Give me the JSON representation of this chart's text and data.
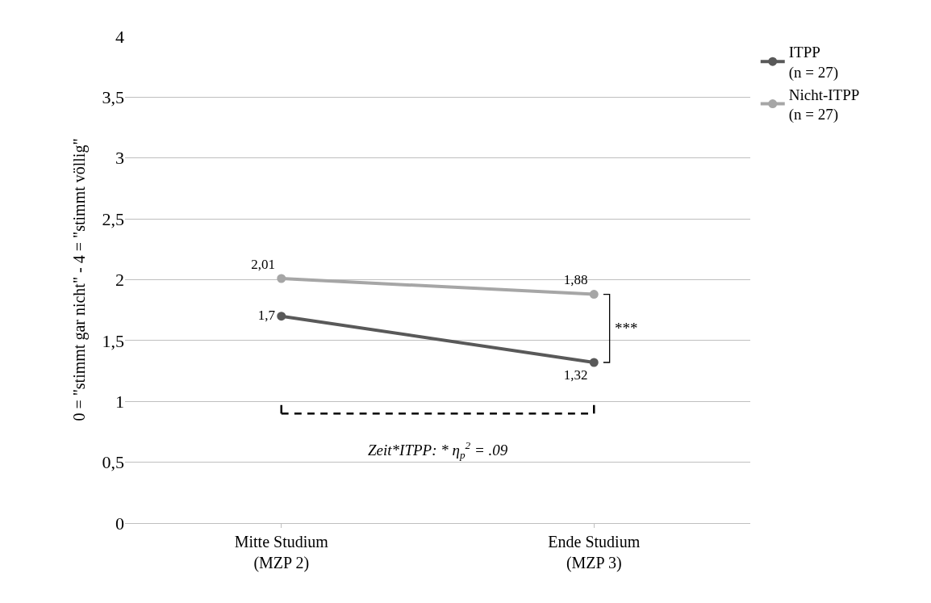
{
  "chart_data": {
    "type": "line",
    "ylabel": "0 = \"stimmt gar nicht\" - 4 = \"stimmt völlig\"",
    "categories": [
      "Mitte Studium\n(MZP 2)",
      "Ende Studium\n(MZP 3)"
    ],
    "series": [
      {
        "name": "ITPP\n(n = 27)",
        "color": "#595959",
        "values": [
          1.7,
          1.32
        ]
      },
      {
        "name": "Nicht-ITPP\n(n = 27)",
        "color": "#a6a6a6",
        "values": [
          2.01,
          1.88
        ]
      }
    ],
    "ylim": [
      0,
      4
    ],
    "yticks": [
      0,
      {
        "value": 0.5,
        "label": "0,5"
      },
      1,
      {
        "value": 1.5,
        "label": "1,5"
      },
      2,
      {
        "value": 2.5,
        "label": "2,5"
      },
      3,
      {
        "value": 3.5,
        "label": "3,5"
      },
      4
    ],
    "value_labels": [
      [
        "1,7",
        "1,32"
      ],
      [
        "2,01",
        "1,88"
      ]
    ],
    "annotations": [
      "***",
      "Zeit*ITPP: * η$_{p}$$^{2}$ = .09"
    ],
    "grid": "y",
    "legend": "top right",
    "marker": "circle",
    "line_style": "solid"
  }
}
